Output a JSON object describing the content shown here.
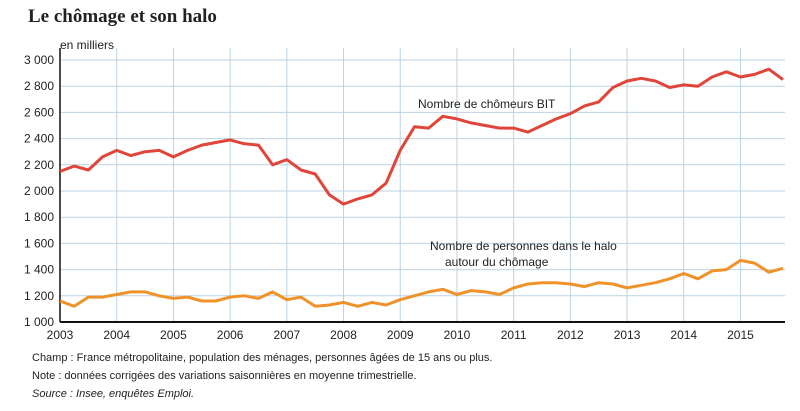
{
  "chart_data": {
    "type": "line",
    "title": "Le chômage et son halo",
    "ylabel": "en milliers",
    "xlabel": "",
    "ylim": [
      1000,
      3000
    ],
    "yticks": [
      1000,
      1200,
      1400,
      1600,
      1800,
      2000,
      2200,
      2400,
      2600,
      2800,
      3000
    ],
    "ytick_labels": [
      "1 000",
      "1 200",
      "1 400",
      "1 600",
      "1 800",
      "2 000",
      "2 200",
      "2 400",
      "2 600",
      "2 800",
      "3 000"
    ],
    "xticks": [
      "2003",
      "2004",
      "2005",
      "2006",
      "2007",
      "2008",
      "2009",
      "2010",
      "2011",
      "2012",
      "2013",
      "2014",
      "2015"
    ],
    "x_frequency": "quarterly, 2003 Q1 to 2015 Q4",
    "grid": true,
    "series": [
      {
        "name": "Nombre de chômeurs BIT",
        "color": "#e0453a",
        "values": [
          2150,
          2190,
          2160,
          2260,
          2310,
          2270,
          2300,
          2310,
          2260,
          2310,
          2350,
          2370,
          2390,
          2360,
          2350,
          2200,
          2240,
          2160,
          2130,
          1970,
          1900,
          1940,
          1970,
          2060,
          2310,
          2490,
          2480,
          2570,
          2550,
          2520,
          2500,
          2480,
          2480,
          2450,
          2500,
          2550,
          2590,
          2650,
          2680,
          2790,
          2840,
          2860,
          2840,
          2790,
          2810,
          2800,
          2870,
          2910,
          2870,
          2890,
          2930,
          2850
        ]
      },
      {
        "name": "Nombre de personnes dans le halo autour du chômage",
        "color": "#f0922a",
        "values": [
          1160,
          1120,
          1190,
          1190,
          1210,
          1230,
          1230,
          1200,
          1180,
          1190,
          1160,
          1160,
          1190,
          1200,
          1180,
          1230,
          1170,
          1190,
          1120,
          1130,
          1150,
          1120,
          1150,
          1130,
          1170,
          1200,
          1230,
          1250,
          1210,
          1240,
          1230,
          1210,
          1260,
          1290,
          1300,
          1300,
          1290,
          1270,
          1300,
          1290,
          1260,
          1280,
          1300,
          1330,
          1370,
          1330,
          1390,
          1400,
          1470,
          1450,
          1380,
          1410
        ]
      }
    ],
    "annotations": {
      "bit": "Nombre de chômeurs BIT",
      "halo_line1": "Nombre de personnes dans le halo",
      "halo_line2": "autour du chômage"
    }
  },
  "notes": [
    "Champ : France métropolitaine, population des ménages, personnes âgées de 15 ans ou plus.",
    "Note : données corrigées des variations saisonnières en moyenne trimestrielle.",
    "Source : Insee, enquêtes Emploi."
  ]
}
